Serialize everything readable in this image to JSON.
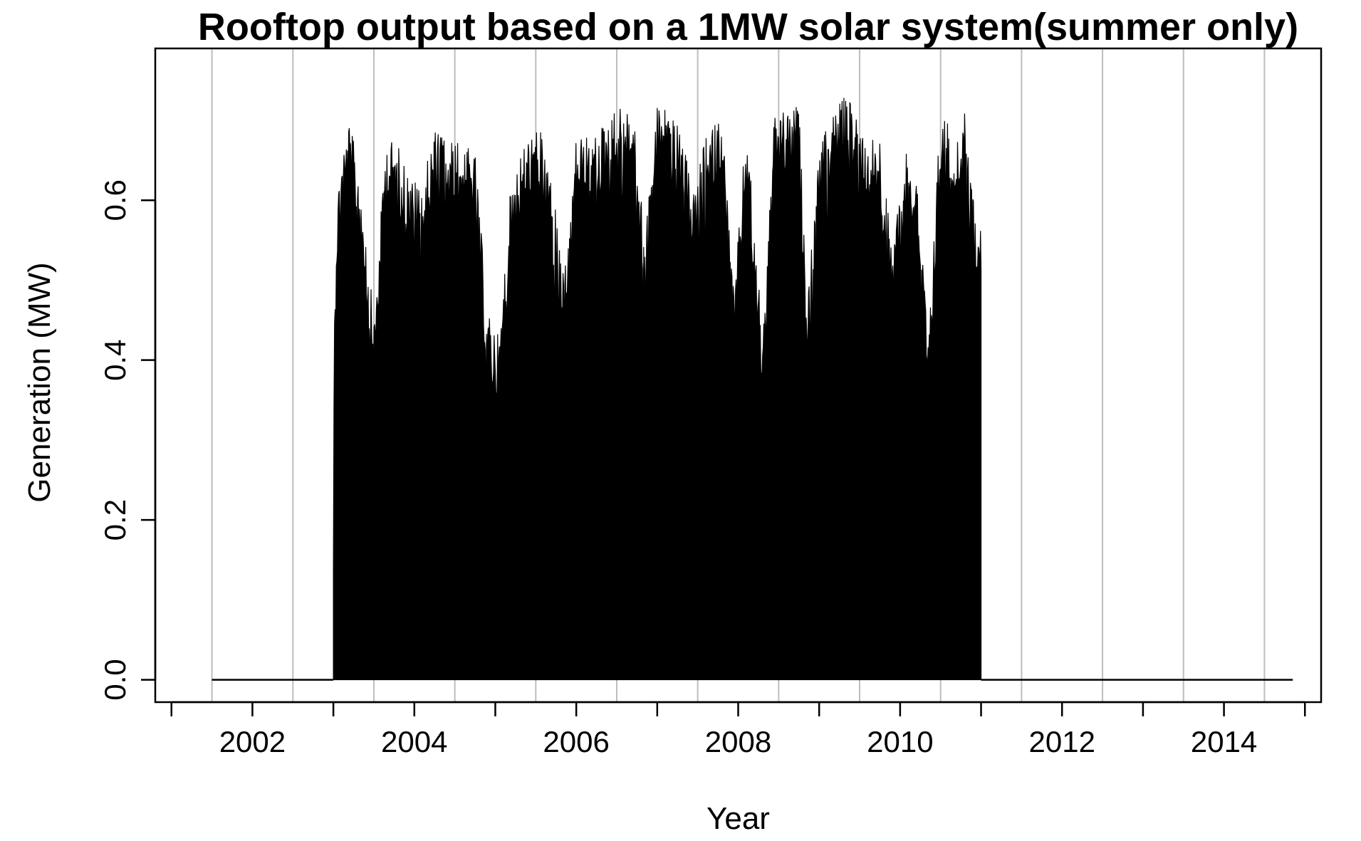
{
  "chart_data": {
    "type": "area",
    "title": "Rooftop output based on a 1MW solar system(summer only)",
    "xlabel": "Year",
    "ylabel": "Generation (MW)",
    "x_axis": {
      "range": [
        2000.8,
        2015.2
      ],
      "ticks": [
        2001,
        2002,
        2003,
        2004,
        2005,
        2006,
        2007,
        2008,
        2009,
        2010,
        2011,
        2012,
        2013,
        2014,
        2015
      ],
      "labeled_ticks": [
        "2002",
        "2004",
        "2006",
        "2008",
        "2010",
        "2012",
        "2014"
      ]
    },
    "y_axis": {
      "range": [
        -0.028,
        0.79
      ],
      "ticks": [
        "0.0",
        "0.2",
        "0.4",
        "0.6"
      ]
    },
    "vertical_gridlines_at": [
      2001.5,
      2002.5,
      2003.5,
      2004.5,
      2005.5,
      2006.5,
      2007.5,
      2008.5,
      2009.5,
      2010.5,
      2011.5,
      2012.5,
      2013.5,
      2014.5
    ],
    "gridline_color": "#bdbdbd",
    "series_color": "#000000",
    "series": [
      {
        "x_range": [
          2001.5,
          2014.85
        ],
        "zero_segments": [
          [
            2001.5,
            2003.0
          ],
          [
            2011.0,
            2014.85
          ]
        ],
        "active_range": [
          2003.0,
          2011.0
        ],
        "points": [
          [
            2003.0,
            0.13
          ],
          [
            2003.01,
            0.42
          ],
          [
            2003.02,
            0.48
          ],
          [
            2003.04,
            0.6
          ],
          [
            2003.1,
            0.66
          ],
          [
            2003.2,
            0.7
          ],
          [
            2003.35,
            0.62
          ],
          [
            2003.5,
            0.45
          ],
          [
            2003.65,
            0.68
          ],
          [
            2003.8,
            0.67
          ],
          [
            2003.95,
            0.63
          ],
          [
            2004.1,
            0.62
          ],
          [
            2004.25,
            0.69
          ],
          [
            2004.45,
            0.68
          ],
          [
            2004.6,
            0.67
          ],
          [
            2004.75,
            0.66
          ],
          [
            2004.9,
            0.46
          ],
          [
            2005.05,
            0.43
          ],
          [
            2005.2,
            0.63
          ],
          [
            2005.4,
            0.68
          ],
          [
            2005.55,
            0.69
          ],
          [
            2005.7,
            0.63
          ],
          [
            2005.85,
            0.5
          ],
          [
            2006.0,
            0.68
          ],
          [
            2006.2,
            0.68
          ],
          [
            2006.35,
            0.7
          ],
          [
            2006.55,
            0.72
          ],
          [
            2006.7,
            0.71
          ],
          [
            2006.85,
            0.56
          ],
          [
            2007.0,
            0.72
          ],
          [
            2007.15,
            0.72
          ],
          [
            2007.3,
            0.68
          ],
          [
            2007.45,
            0.61
          ],
          [
            2007.6,
            0.68
          ],
          [
            2007.8,
            0.71
          ],
          [
            2007.95,
            0.48
          ],
          [
            2008.1,
            0.7
          ],
          [
            2008.3,
            0.44
          ],
          [
            2008.45,
            0.71
          ],
          [
            2008.6,
            0.71
          ],
          [
            2008.75,
            0.72
          ],
          [
            2008.85,
            0.47
          ],
          [
            2009.0,
            0.66
          ],
          [
            2009.15,
            0.71
          ],
          [
            2009.3,
            0.73
          ],
          [
            2009.45,
            0.72
          ],
          [
            2009.6,
            0.68
          ],
          [
            2009.75,
            0.68
          ],
          [
            2009.9,
            0.54
          ],
          [
            2010.05,
            0.67
          ],
          [
            2010.2,
            0.65
          ],
          [
            2010.35,
            0.42
          ],
          [
            2010.5,
            0.72
          ],
          [
            2010.65,
            0.68
          ],
          [
            2010.8,
            0.71
          ],
          [
            2010.9,
            0.61
          ],
          [
            2011.0,
            0.59
          ]
        ]
      }
    ],
    "grid": "vertical-only",
    "legend": "none"
  }
}
